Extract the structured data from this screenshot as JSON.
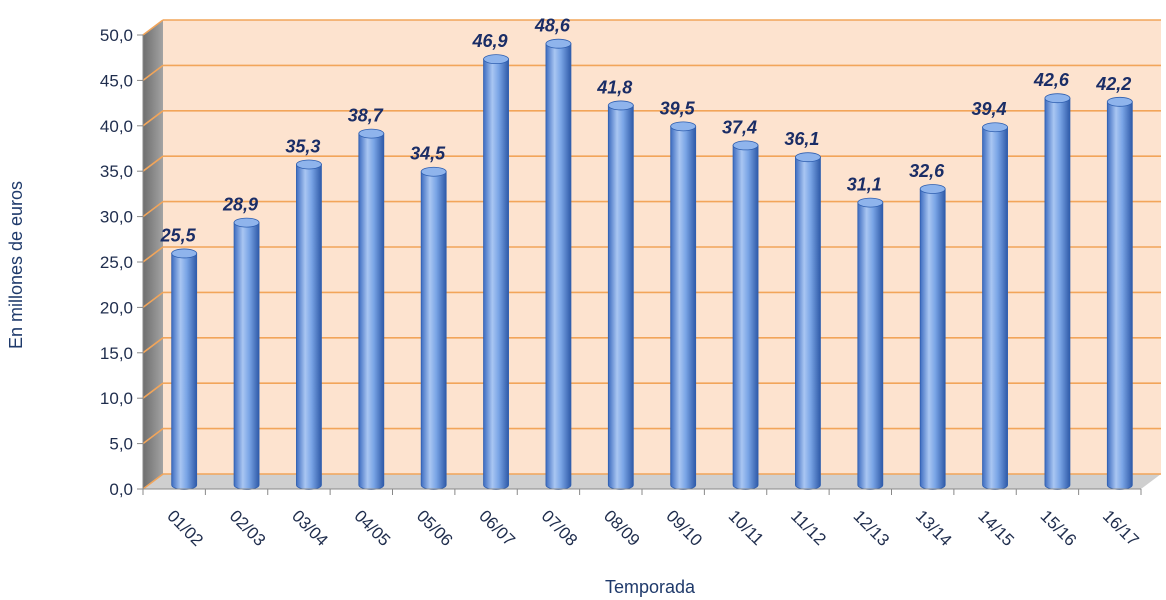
{
  "chart_data": {
    "type": "bar",
    "title": "",
    "xlabel": "Temporada",
    "ylabel": "En millones de euros",
    "categories": [
      "01/02",
      "02/03",
      "03/04",
      "04/05",
      "05/06",
      "06/07",
      "07/08",
      "08/09",
      "09/10",
      "10/11",
      "11/12",
      "12/13",
      "13/14",
      "14/15",
      "15/16",
      "16/17"
    ],
    "values": [
      25.5,
      28.9,
      35.3,
      38.7,
      34.5,
      46.9,
      48.6,
      41.8,
      39.5,
      37.4,
      36.1,
      31.1,
      32.6,
      39.4,
      42.6,
      42.2
    ],
    "value_labels": [
      "25,5",
      "28,9",
      "35,3",
      "38,7",
      "34,5",
      "46,9",
      "48,6",
      "41,8",
      "39,5",
      "37,4",
      "36,1",
      "31,1",
      "32,6",
      "39,4",
      "42,6",
      "42,2"
    ],
    "yticks": [
      "0,0",
      "5,0",
      "10,0",
      "15,0",
      "20,0",
      "25,0",
      "30,0",
      "35,0",
      "40,0",
      "45,0",
      "50,0"
    ],
    "ylim": [
      0,
      50
    ],
    "grid": true,
    "style": "3d-cylinder",
    "colors": {
      "bar": "#6f9ce0",
      "bar_edge": "#2f5fb0",
      "wall": "#fde3cf",
      "wall_side": "#8c8c8c",
      "gridline": "#f2a55a",
      "label": "#1a2d66"
    }
  }
}
